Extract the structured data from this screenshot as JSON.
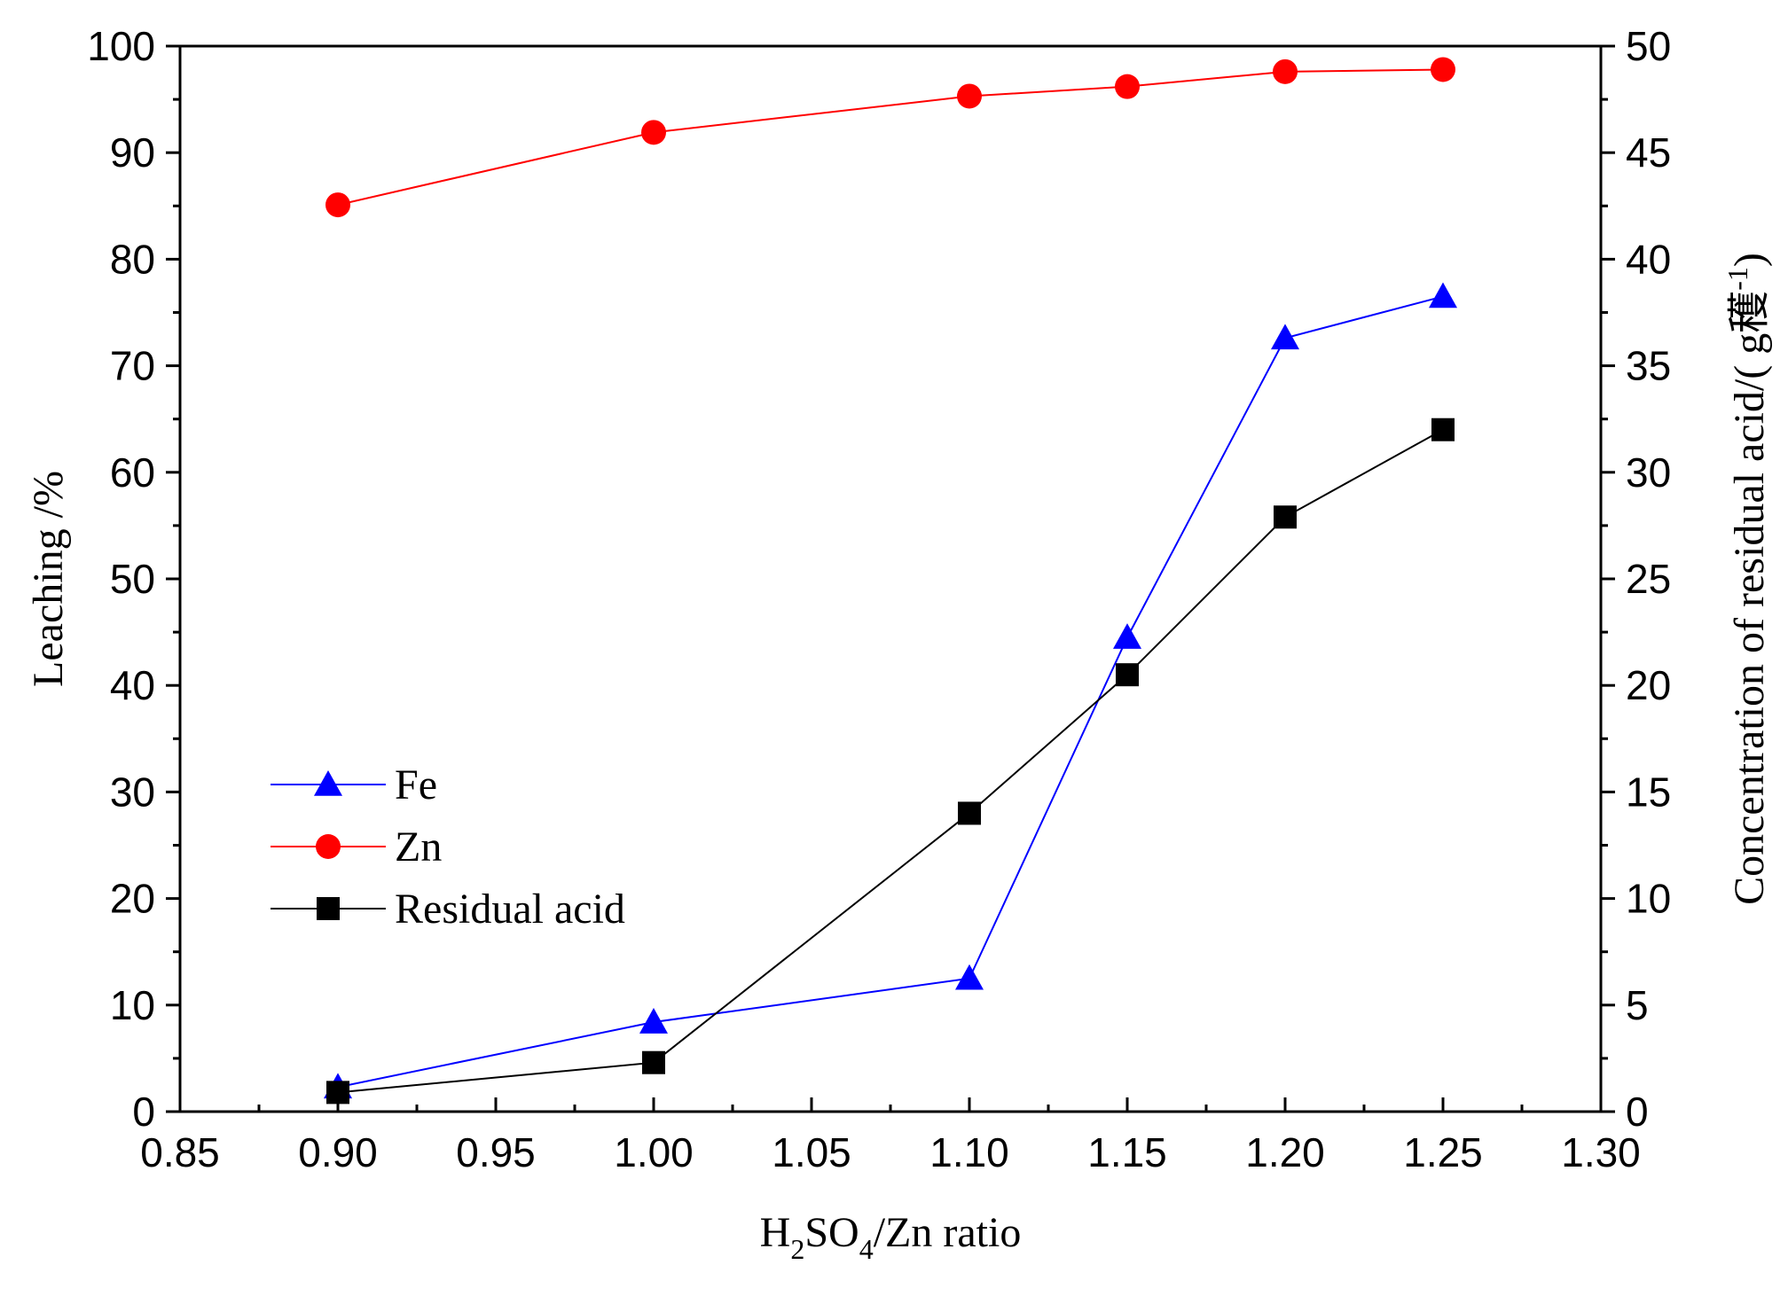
{
  "chart_data": {
    "type": "line",
    "x": [
      0.9,
      1.0,
      1.1,
      1.15,
      1.2,
      1.25
    ],
    "xlabel": {
      "pre": "H",
      "sub1": "2",
      "mid": "SO",
      "sub2": "4",
      "post": "/Zn ratio"
    },
    "ylabel": "Leaching /%",
    "y2label": {
      "main": "Concentration of residual acid/(  g穫",
      "sup": "-1",
      "close": ")"
    },
    "xlim": [
      0.85,
      1.3
    ],
    "ylim": [
      0,
      100
    ],
    "y2lim": [
      0,
      50
    ],
    "xticks": [
      "0.85",
      "0.90",
      "0.95",
      "1.00",
      "1.05",
      "1.10",
      "1.15",
      "1.20",
      "1.25",
      "1.30"
    ],
    "yticks": [
      "0",
      "10",
      "20",
      "30",
      "40",
      "50",
      "60",
      "70",
      "80",
      "90",
      "100"
    ],
    "y2ticks": [
      "0",
      "5",
      "10",
      "15",
      "20",
      "25",
      "30",
      "35",
      "40",
      "45",
      "50"
    ],
    "legend_position": "lower-left",
    "series": [
      {
        "name": "Fe",
        "axis": "left",
        "marker": "triangle",
        "color": "#0000ff",
        "values": [
          2.3,
          8.4,
          12.5,
          44.5,
          72.6,
          76.5
        ]
      },
      {
        "name": "Zn",
        "axis": "left",
        "marker": "circle",
        "color": "#ff0000",
        "values": [
          85.1,
          91.9,
          95.3,
          96.2,
          97.6,
          97.8
        ]
      },
      {
        "name": "Residual acid",
        "axis": "right",
        "marker": "square",
        "color": "#000000",
        "values": [
          0.9,
          2.3,
          14.0,
          20.5,
          27.9,
          32.0
        ]
      }
    ]
  }
}
